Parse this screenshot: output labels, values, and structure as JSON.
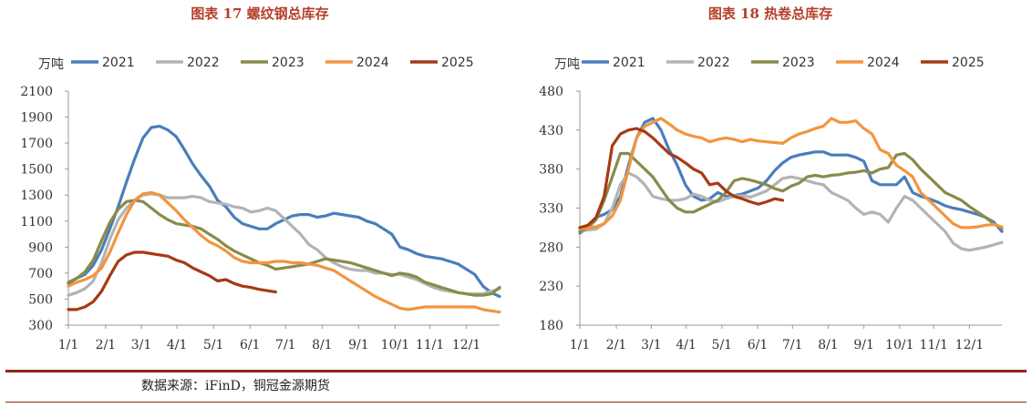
{
  "source": "数据来源：iFinD，铜冠金源期货",
  "chart_data": [
    {
      "type": "line",
      "title": "图表 17  螺纹钢总库存",
      "ylabel": "万吨",
      "ylim": [
        300,
        2100
      ],
      "yticks": [
        300,
        500,
        700,
        900,
        1100,
        1300,
        1500,
        1700,
        1900,
        2100
      ],
      "xlim": [
        1,
        53
      ],
      "x_tick_labels": [
        "1/1",
        "2/1",
        "3/1",
        "4/1",
        "5/1",
        "6/1",
        "7/1",
        "8/1",
        "9/1",
        "10/1",
        "11/1",
        "12/1"
      ],
      "x_tick_weeks": [
        1,
        5.5,
        9.8,
        14.1,
        18.5,
        22.9,
        27.2,
        31.6,
        36,
        40.4,
        44.6,
        49
      ],
      "legend_position": "top",
      "series": [
        {
          "name": "2021",
          "color": "#4a7ebb",
          "values": [
            620,
            660,
            690,
            760,
            880,
            1040,
            1210,
            1400,
            1580,
            1740,
            1820,
            1830,
            1800,
            1750,
            1650,
            1540,
            1450,
            1370,
            1260,
            1210,
            1130,
            1080,
            1060,
            1040,
            1040,
            1080,
            1110,
            1140,
            1150,
            1150,
            1130,
            1140,
            1160,
            1150,
            1140,
            1130,
            1100,
            1080,
            1040,
            1000,
            900,
            880,
            850,
            830,
            820,
            810,
            790,
            770,
            730,
            690,
            600,
            550,
            520
          ]
        },
        {
          "name": "2022",
          "color": "#b3b3b3",
          "values": [
            530,
            550,
            580,
            640,
            780,
            960,
            1110,
            1200,
            1260,
            1300,
            1310,
            1300,
            1280,
            1280,
            1280,
            1290,
            1280,
            1250,
            1240,
            1230,
            1210,
            1200,
            1170,
            1180,
            1200,
            1180,
            1120,
            1060,
            1000,
            920,
            880,
            820,
            780,
            750,
            730,
            720,
            720,
            700,
            700,
            690,
            690,
            670,
            650,
            620,
            590,
            570,
            560,
            550,
            540,
            540,
            540,
            560,
            580
          ]
        },
        {
          "name": "2023",
          "color": "#8a8a4a",
          "values": [
            630,
            660,
            710,
            800,
            950,
            1090,
            1190,
            1250,
            1260,
            1250,
            1200,
            1150,
            1110,
            1080,
            1070,
            1060,
            1040,
            1000,
            960,
            910,
            870,
            840,
            810,
            780,
            760,
            730,
            740,
            750,
            760,
            770,
            790,
            810,
            800,
            790,
            780,
            760,
            740,
            720,
            700,
            680,
            700,
            690,
            670,
            630,
            610,
            590,
            570,
            550,
            540,
            530,
            530,
            540,
            590
          ]
        },
        {
          "name": "2024",
          "color": "#f2953f",
          "values": [
            600,
            630,
            650,
            680,
            740,
            860,
            1010,
            1150,
            1260,
            1310,
            1320,
            1300,
            1240,
            1180,
            1110,
            1050,
            990,
            940,
            910,
            870,
            820,
            790,
            780,
            780,
            780,
            790,
            790,
            780,
            780,
            770,
            760,
            740,
            720,
            680,
            640,
            600,
            560,
            520,
            490,
            460,
            430,
            420,
            430,
            440,
            440,
            440,
            440,
            440,
            440,
            440,
            420,
            410,
            400
          ]
        },
        {
          "name": "2025",
          "color": "#a63a13",
          "values": [
            420,
            420,
            440,
            480,
            560,
            680,
            790,
            840,
            860,
            860,
            850,
            840,
            830,
            800,
            780,
            740,
            710,
            680,
            640,
            650,
            620,
            600,
            590,
            575,
            565,
            555
          ]
        }
      ]
    },
    {
      "type": "line",
      "title": "图表 18 热卷总库存",
      "ylabel": "万吨",
      "ylim": [
        180,
        480
      ],
      "yticks": [
        180,
        230,
        280,
        330,
        380,
        430,
        480
      ],
      "xlim": [
        1,
        53
      ],
      "x_tick_labels": [
        "1/1",
        "2/1",
        "3/1",
        "4/1",
        "5/1",
        "6/1",
        "7/1",
        "8/1",
        "9/1",
        "10/1",
        "11/1",
        "12/1"
      ],
      "x_tick_weeks": [
        1,
        5.5,
        9.8,
        14.1,
        18.5,
        22.9,
        27.2,
        31.6,
        36,
        40.4,
        44.6,
        49
      ],
      "legend_position": "top",
      "series": [
        {
          "name": "2021",
          "color": "#4a7ebb",
          "values": [
            298,
            305,
            318,
            322,
            328,
            345,
            385,
            420,
            440,
            445,
            430,
            405,
            385,
            360,
            345,
            340,
            342,
            350,
            345,
            346,
            348,
            352,
            356,
            365,
            378,
            388,
            395,
            398,
            400,
            402,
            402,
            398,
            398,
            398,
            395,
            390,
            365,
            360,
            360,
            360,
            370,
            350,
            345,
            342,
            338,
            333,
            330,
            328,
            325,
            322,
            318,
            312,
            300
          ]
        },
        {
          "name": "2022",
          "color": "#b3b3b3",
          "values": [
            300,
            302,
            303,
            310,
            330,
            360,
            375,
            370,
            360,
            345,
            342,
            340,
            340,
            342,
            348,
            345,
            340,
            338,
            342,
            345,
            346,
            344,
            348,
            352,
            360,
            368,
            370,
            368,
            365,
            362,
            360,
            350,
            345,
            340,
            330,
            322,
            325,
            322,
            312,
            330,
            345,
            340,
            330,
            320,
            310,
            300,
            285,
            278,
            276,
            278,
            280,
            283,
            286
          ]
        },
        {
          "name": "2023",
          "color": "#8a8a4a",
          "values": [
            300,
            305,
            315,
            340,
            370,
            400,
            400,
            390,
            380,
            370,
            355,
            340,
            330,
            325,
            325,
            330,
            335,
            340,
            350,
            365,
            368,
            366,
            363,
            360,
            355,
            352,
            358,
            362,
            370,
            372,
            370,
            372,
            373,
            375,
            376,
            378,
            375,
            380,
            382,
            398,
            400,
            392,
            380,
            370,
            360,
            350,
            345,
            340,
            332,
            325,
            318,
            310,
            304
          ]
        },
        {
          "name": "2024",
          "color": "#f2953f",
          "values": [
            303,
            305,
            306,
            310,
            320,
            340,
            380,
            420,
            435,
            440,
            445,
            438,
            430,
            425,
            422,
            420,
            415,
            418,
            420,
            418,
            415,
            418,
            416,
            415,
            414,
            413,
            420,
            425,
            428,
            432,
            435,
            445,
            440,
            440,
            442,
            432,
            425,
            405,
            400,
            385,
            378,
            370,
            350,
            340,
            330,
            320,
            310,
            305,
            305,
            306,
            308,
            309,
            306
          ]
        },
        {
          "name": "2025",
          "color": "#a63a13",
          "values": [
            305,
            308,
            318,
            345,
            410,
            425,
            430,
            432,
            428,
            420,
            410,
            400,
            395,
            388,
            380,
            375,
            360,
            362,
            352,
            345,
            342,
            338,
            335,
            338,
            342,
            340
          ]
        }
      ]
    }
  ]
}
